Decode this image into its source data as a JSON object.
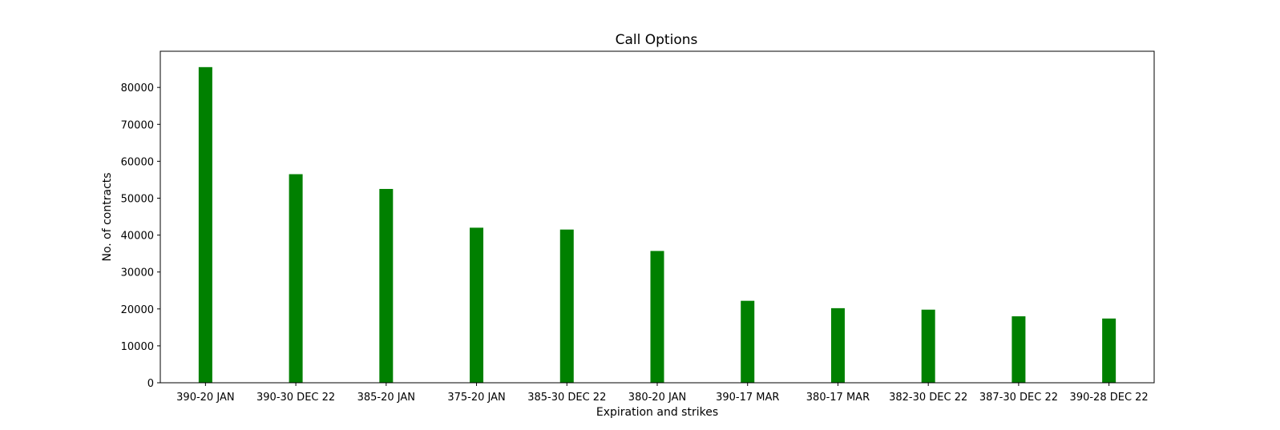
{
  "chart_data": {
    "type": "bar",
    "title": "Call Options",
    "xlabel": "Expiration and strikes",
    "ylabel": "No. of contracts",
    "categories": [
      "390-20 JAN",
      "390-30 DEC 22",
      "385-20 JAN",
      "375-20 JAN",
      "385-30 DEC 22",
      "380-20 JAN",
      "390-17 MAR",
      "380-17 MAR",
      "382-30 DEC 22",
      "387-30 DEC 22",
      "390-28 DEC 22"
    ],
    "values": [
      85500,
      56500,
      52500,
      42000,
      41500,
      35700,
      22200,
      20200,
      19800,
      18000,
      17400
    ],
    "ylim": [
      0,
      89800
    ],
    "yticks": [
      0,
      10000,
      20000,
      30000,
      40000,
      50000,
      60000,
      70000,
      80000
    ],
    "bar_color": "#008000",
    "grid": false
  }
}
